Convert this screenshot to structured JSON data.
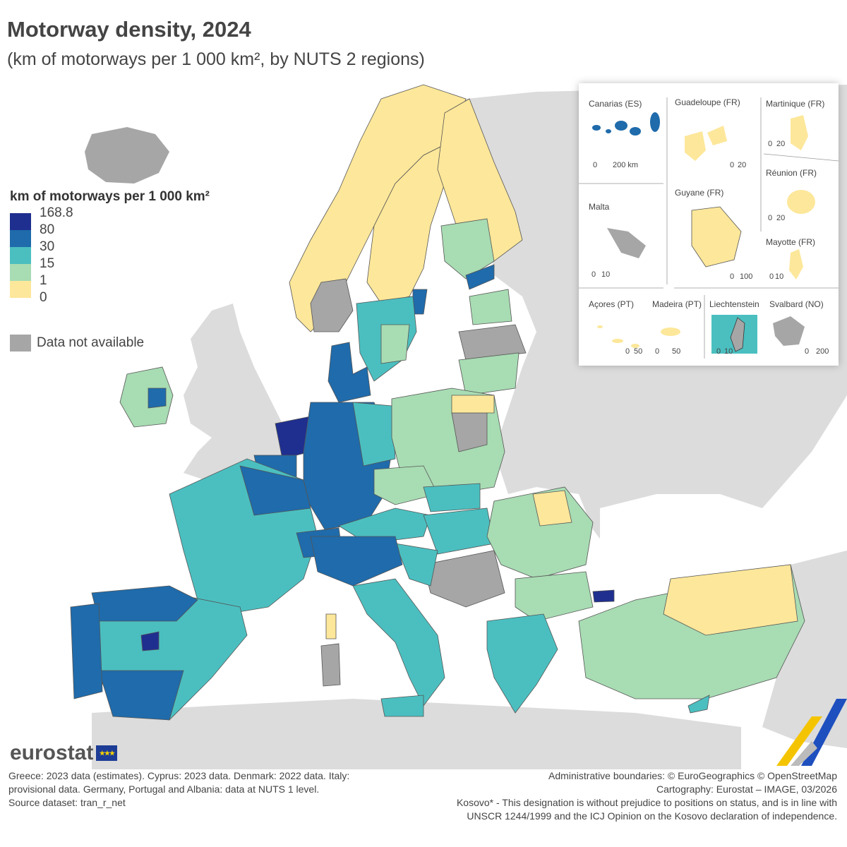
{
  "header": {
    "title": "Motorway density, 2024",
    "subtitle": "(km of motorways per 1 000 km², by NUTS 2 regions)"
  },
  "legend": {
    "title": "km of motorways per 1 000 km²",
    "ticks": [
      "168.8",
      "80",
      "30",
      "15",
      "1",
      "0"
    ],
    "classes": [
      {
        "range": "80 – 168.8",
        "color": "#1f2f8f"
      },
      {
        "range": "30 – 80",
        "color": "#1f6bab"
      },
      {
        "range": "15 – 30",
        "color": "#4bbfc0"
      },
      {
        "range": "1 – 15",
        "color": "#a8dcb3"
      },
      {
        "range": "0 – 1",
        "color": "#fde79a"
      }
    ],
    "na_label": "Data not available",
    "na_color": "#a6a6a6"
  },
  "colors": {
    "non_eu_land": "#dcdcdc",
    "sea": "#ffffff",
    "boundary": "#555555"
  },
  "insets": {
    "labels": [
      "Canarias (ES)",
      "Guadeloupe (FR)",
      "Martinique (FR)",
      "Réunion (FR)",
      "Guyane (FR)",
      "Malta",
      "Mayotte (FR)",
      "Açores (PT)",
      "Madeira (PT)",
      "Liechtenstein",
      "Svalbard (NO)"
    ],
    "scales": {
      "canarias": [
        "0",
        "200 km"
      ],
      "guadeloupe": [
        "0",
        "20"
      ],
      "martinique": [
        "0",
        "20"
      ],
      "reunion": [
        "0",
        "20"
      ],
      "guyane": [
        "0",
        "100"
      ],
      "malta": [
        "0",
        "10"
      ],
      "mayotte": [
        "0",
        "10"
      ],
      "acores": [
        "0",
        "50"
      ],
      "madeira": [
        "0",
        "50"
      ],
      "liechtenstein": [
        "0",
        "10"
      ],
      "svalbard": [
        "0",
        "200"
      ]
    }
  },
  "branding": {
    "logo_text": "eurostat"
  },
  "notes": {
    "left": [
      "Greece: 2023 data (estimates). Cyprus: 2023 data. Denmark: 2022 data. Italy:",
      "provisional data. Germany, Portugal and Albania: data at NUTS 1 level.",
      "Source dataset: tran_r_net"
    ],
    "right": [
      "Administrative boundaries: © EuroGeographics © OpenStreetMap",
      "Cartography: Eurostat – IMAGE, 03/2026",
      "Kosovo* - This designation is without prejudice to positions on status, and is in line with",
      "UNSCR 1244/1999 and the ICJ Opinion on the Kosovo declaration of independence."
    ]
  }
}
